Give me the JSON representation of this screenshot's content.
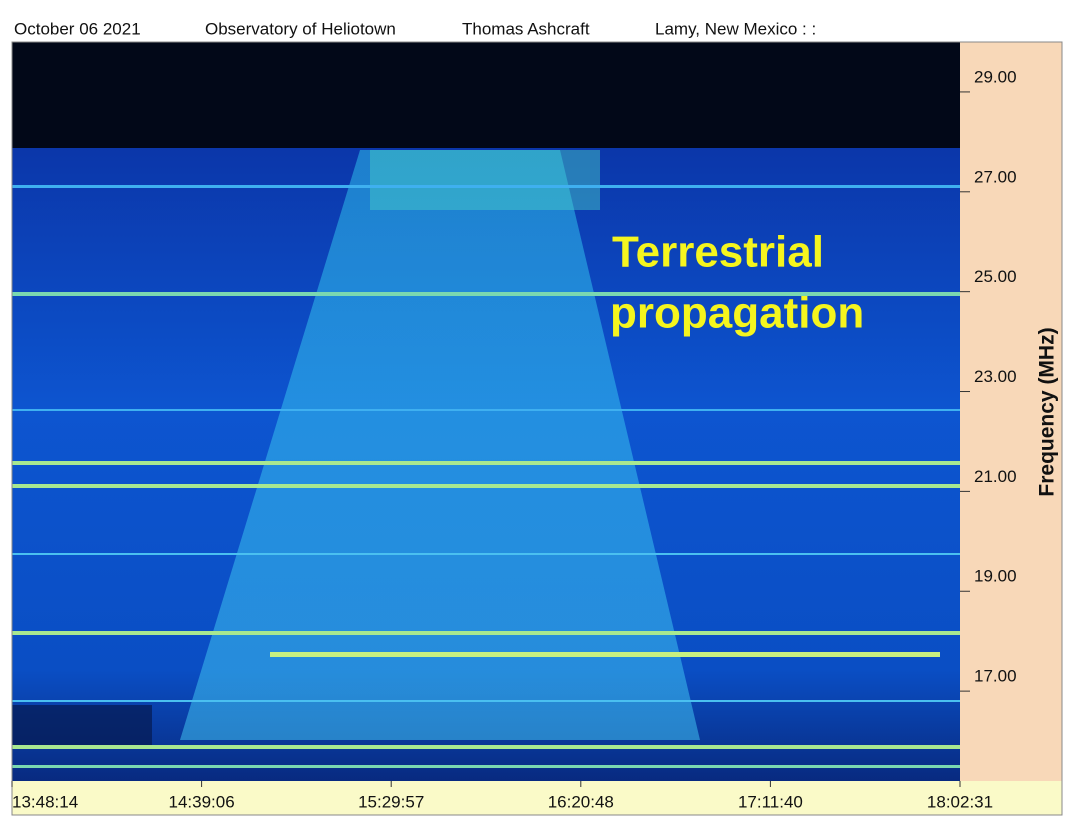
{
  "chart_data": {
    "type": "spectrogram",
    "header": [
      "October 06 2021",
      "Observatory of Heliotown",
      "Thomas Ashcraft",
      "Lamy, New Mexico :  :"
    ],
    "y_label": "Frequency (MHz)",
    "annotation": [
      "Terrestrial",
      "propagation"
    ],
    "xticks": [
      "13:48:14",
      "14:39:06",
      "15:29:57",
      "16:20:48",
      "17:11:40",
      "18:02:31"
    ],
    "ylim": [
      15.2,
      30
    ],
    "yticks": [
      {
        "value": 17,
        "label": "17.00"
      },
      {
        "value": 19,
        "label": "19.00"
      },
      {
        "value": 21,
        "label": "21.00"
      },
      {
        "value": 23,
        "label": "23.00"
      },
      {
        "value": 25,
        "label": "25.00"
      },
      {
        "value": 27,
        "label": "27.00"
      },
      {
        "value": 29,
        "label": "29.00"
      }
    ]
  }
}
